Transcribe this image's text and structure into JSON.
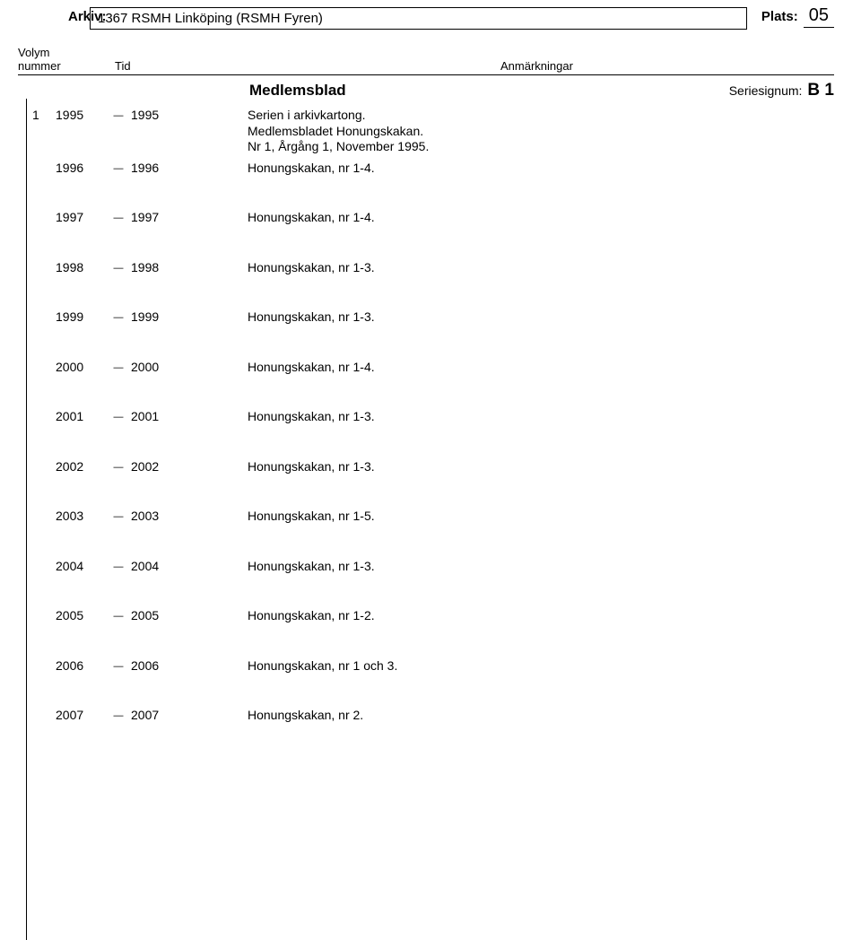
{
  "header": {
    "arkiv_label": "Arkiv:",
    "arkiv_value": "1367 RSMH Linköping (RSMH Fyren)",
    "plats_label": "Plats:",
    "plats_value": "05"
  },
  "columns": {
    "volym_l1": "Volym",
    "volym_l2": "nummer",
    "tid": "Tid",
    "anm": "Anmärkningar"
  },
  "series": {
    "title": "Medlemsblad",
    "signum_label": "Seriesignum:",
    "signum_value": "B 1"
  },
  "entries": [
    {
      "vol": "1",
      "from": "1995",
      "to": "1995",
      "notes": [
        "Serien i arkivkartong.",
        "Medlemsbladet Honungskakan.",
        "Nr 1, Årgång 1, November 1995."
      ]
    },
    {
      "vol": "",
      "from": "1996",
      "to": "1996",
      "notes": [
        "Honungskakan, nr 1-4."
      ]
    },
    {
      "vol": "",
      "from": "1997",
      "to": "1997",
      "notes": [
        "Honungskakan, nr 1-4."
      ]
    },
    {
      "vol": "",
      "from": "1998",
      "to": "1998",
      "notes": [
        "Honungskakan, nr 1-3."
      ]
    },
    {
      "vol": "",
      "from": "1999",
      "to": "1999",
      "notes": [
        "Honungskakan, nr 1-3."
      ]
    },
    {
      "vol": "",
      "from": "2000",
      "to": "2000",
      "notes": [
        "Honungskakan, nr 1-4."
      ]
    },
    {
      "vol": "",
      "from": "2001",
      "to": "2001",
      "notes": [
        "Honungskakan, nr 1-3."
      ]
    },
    {
      "vol": "",
      "from": "2002",
      "to": "2002",
      "notes": [
        "Honungskakan, nr 1-3."
      ]
    },
    {
      "vol": "",
      "from": "2003",
      "to": "2003",
      "notes": [
        "Honungskakan, nr 1-5."
      ]
    },
    {
      "vol": "",
      "from": "2004",
      "to": "2004",
      "notes": [
        "Honungskakan, nr 1-3."
      ]
    },
    {
      "vol": "",
      "from": "2005",
      "to": "2005",
      "notes": [
        "Honungskakan, nr 1-2."
      ]
    },
    {
      "vol": "",
      "from": "2006",
      "to": "2006",
      "notes": [
        "Honungskakan, nr 1 och 3."
      ]
    },
    {
      "vol": "",
      "from": "2007",
      "to": "2007",
      "notes": [
        "Honungskakan, nr 2."
      ]
    }
  ],
  "dash": "—"
}
